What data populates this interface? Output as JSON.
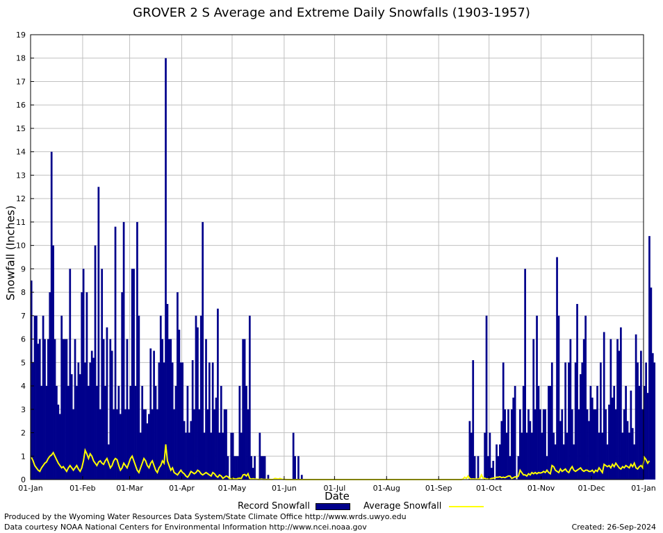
{
  "chart_data": {
    "type": "bar",
    "title": "GROVER 2 S Average and Extreme Daily Snowfalls (1903-1957)",
    "xlabel": "Date",
    "ylabel": "Snowfall (Inches)",
    "ylim": [
      0,
      19
    ],
    "xlim_days": [
      1,
      366
    ],
    "grid": true,
    "x_ticks": [
      "01-Jan",
      "01-Feb",
      "01-Mar",
      "01-Apr",
      "01-May",
      "01-Jun",
      "01-Jul",
      "01-Aug",
      "01-Sep",
      "01-Oct",
      "01-Nov",
      "01-Dec",
      "01-Jan"
    ],
    "y_ticks": [
      0,
      1,
      2,
      3,
      4,
      5,
      6,
      7,
      8,
      9,
      10,
      11,
      12,
      13,
      14,
      15,
      16,
      17,
      18,
      19
    ],
    "series": [
      {
        "name": "Record Snowfall",
        "type": "bar",
        "color": "#00008b",
        "values": [
          8.5,
          5,
          7,
          7,
          5.8,
          6,
          4,
          7,
          6,
          4,
          6,
          8,
          14,
          10,
          6,
          4,
          3.2,
          2.8,
          7,
          6,
          6,
          6,
          4,
          9,
          4.5,
          3,
          6,
          4,
          5,
          4.5,
          8,
          9,
          5,
          8,
          4,
          5,
          5.5,
          5.2,
          10,
          4,
          12.5,
          3,
          9,
          6,
          4,
          6.5,
          1.5,
          6,
          5.5,
          3,
          10.8,
          3,
          4,
          2.8,
          8,
          11,
          3,
          6,
          3,
          4,
          9,
          9,
          4,
          11,
          7,
          2,
          4,
          3,
          3,
          2.4,
          2.8,
          5.6,
          3,
          5.5,
          4,
          3,
          5,
          7,
          6,
          5,
          18,
          7.5,
          6,
          6,
          5,
          3,
          4,
          8,
          6.4,
          5,
          5,
          2.5,
          2,
          4,
          2,
          2.5,
          5.1,
          3,
          7,
          6.5,
          3,
          7,
          11,
          2,
          6,
          3,
          5,
          2,
          5,
          3,
          3.5,
          7.3,
          2,
          4,
          2,
          3,
          3,
          1,
          0,
          2,
          2,
          1,
          1,
          1,
          4,
          2,
          6,
          6,
          4,
          3,
          7,
          1,
          0.5,
          1,
          0,
          0,
          2,
          1,
          1,
          1,
          0,
          0.2,
          0,
          0,
          0,
          0,
          0,
          0,
          0,
          0,
          0,
          0,
          0,
          0,
          0,
          0,
          2,
          1,
          0,
          1,
          0,
          0.2,
          0,
          0,
          0,
          0,
          0,
          0,
          0,
          0,
          0,
          0,
          0,
          0,
          0,
          0,
          0,
          0,
          0,
          0,
          0,
          0,
          0,
          0,
          0,
          0,
          0,
          0,
          0,
          0,
          0,
          0,
          0,
          0,
          0,
          0,
          0,
          0,
          0,
          0,
          0,
          0,
          0,
          0,
          0,
          0,
          0,
          0,
          0,
          0,
          0,
          0,
          0,
          0,
          0,
          0,
          0,
          0,
          0,
          0,
          0,
          0,
          0,
          0,
          0,
          0,
          0,
          0,
          0,
          0,
          0,
          0,
          0,
          0,
          0,
          0,
          0,
          0,
          0,
          0,
          0,
          0,
          0,
          0,
          0,
          0,
          0,
          0,
          0,
          0,
          0,
          0,
          0,
          0,
          0,
          0,
          0,
          0,
          0,
          0,
          0,
          2.5,
          2,
          5.1,
          1,
          0,
          1,
          0,
          0,
          0,
          2,
          7,
          1,
          2,
          0.5,
          0.8,
          0,
          1.5,
          1,
          1.5,
          2.5,
          5,
          3,
          2,
          3,
          1,
          3,
          3.5,
          4,
          0,
          1,
          3,
          2,
          4,
          9,
          2,
          3,
          2.5,
          2,
          6,
          3,
          7,
          4,
          3,
          2,
          3,
          3,
          1,
          4,
          4,
          5,
          2,
          1.5,
          9.5,
          7,
          2.5,
          3,
          1.5,
          5,
          2,
          5,
          6,
          3,
          1.5,
          5,
          7.5,
          3,
          4.5,
          5,
          6,
          7,
          3,
          2.5,
          4,
          3.5,
          3,
          3,
          4,
          2,
          5,
          2,
          6.3,
          3,
          1.5,
          3.2,
          6,
          3.5,
          4,
          3,
          6,
          5.5,
          6.5,
          2,
          3,
          4,
          2.5,
          2,
          3.8,
          2.2,
          1.5,
          6.2,
          5,
          4,
          5.5,
          3,
          4,
          5,
          3.7,
          10.4,
          8.2,
          5.4,
          5
        ]
      },
      {
        "name": "Average Snowfall",
        "type": "line",
        "color": "#ffff00",
        "values": [
          0.95,
          0.8,
          0.6,
          0.5,
          0.4,
          0.35,
          0.5,
          0.6,
          0.7,
          0.75,
          0.9,
          1.0,
          1.05,
          1.15,
          1.0,
          0.85,
          0.7,
          0.6,
          0.5,
          0.55,
          0.45,
          0.35,
          0.5,
          0.6,
          0.5,
          0.4,
          0.5,
          0.6,
          0.45,
          0.35,
          0.5,
          0.8,
          1.25,
          1.1,
          0.9,
          1.1,
          1.0,
          0.8,
          0.7,
          0.6,
          0.75,
          0.8,
          0.7,
          0.65,
          0.8,
          0.9,
          0.7,
          0.5,
          0.6,
          0.8,
          0.9,
          0.85,
          0.6,
          0.4,
          0.5,
          0.7,
          0.6,
          0.5,
          0.7,
          0.9,
          1.0,
          0.8,
          0.6,
          0.4,
          0.3,
          0.5,
          0.7,
          0.9,
          0.8,
          0.6,
          0.5,
          0.7,
          0.8,
          0.6,
          0.4,
          0.3,
          0.5,
          0.6,
          0.8,
          0.7,
          1.5,
          0.8,
          0.6,
          0.4,
          0.5,
          0.3,
          0.25,
          0.2,
          0.3,
          0.4,
          0.3,
          0.25,
          0.15,
          0.1,
          0.2,
          0.35,
          0.3,
          0.25,
          0.3,
          0.4,
          0.35,
          0.25,
          0.2,
          0.25,
          0.3,
          0.25,
          0.2,
          0.15,
          0.3,
          0.25,
          0.15,
          0.1,
          0.2,
          0.15,
          0.05,
          0.1,
          0.15,
          0.12,
          0.05,
          0.03,
          0.05,
          0.03,
          0.02,
          0.05,
          0.06,
          0.05,
          0.2,
          0.22,
          0.15,
          0.25,
          0.05,
          0.02,
          0.04,
          0.02,
          0.02,
          0.01,
          0.01,
          0.02,
          0.01,
          0.01,
          0.01,
          0.01,
          0.01,
          0,
          0.01,
          0.05,
          0.04,
          0.02,
          0.05,
          0.02,
          0.01,
          0.01,
          0,
          0,
          0,
          0,
          0,
          0,
          0,
          0,
          0,
          0,
          0,
          0,
          0,
          0,
          0,
          0,
          0,
          0,
          0,
          0,
          0,
          0,
          0,
          0,
          0,
          0,
          0,
          0,
          0,
          0,
          0,
          0,
          0,
          0,
          0,
          0,
          0,
          0,
          0,
          0,
          0,
          0,
          0,
          0,
          0,
          0,
          0,
          0,
          0,
          0,
          0,
          0,
          0,
          0,
          0,
          0,
          0,
          0,
          0,
          0,
          0,
          0,
          0,
          0,
          0,
          0,
          0,
          0,
          0,
          0,
          0,
          0,
          0,
          0,
          0,
          0,
          0,
          0,
          0,
          0,
          0,
          0,
          0,
          0,
          0,
          0,
          0,
          0,
          0,
          0,
          0,
          0,
          0,
          0,
          0,
          0,
          0,
          0,
          0,
          0,
          0,
          0,
          0,
          0,
          0,
          0.02,
          0.1,
          0.05,
          0.15,
          0.05,
          0.02,
          0.03,
          0.02,
          0.02,
          0.02,
          0.05,
          0.2,
          0.05,
          0.06,
          0.02,
          0.03,
          0.02,
          0.05,
          0.06,
          0.08,
          0.1,
          0.1,
          0.12,
          0.08,
          0.1,
          0.08,
          0.12,
          0.15,
          0.15,
          0.05,
          0.08,
          0.12,
          0.1,
          0.15,
          0.4,
          0.3,
          0.2,
          0.2,
          0.15,
          0.25,
          0.2,
          0.3,
          0.25,
          0.3,
          0.25,
          0.3,
          0.28,
          0.3,
          0.35,
          0.3,
          0.4,
          0.3,
          0.25,
          0.6,
          0.55,
          0.4,
          0.35,
          0.3,
          0.45,
          0.35,
          0.4,
          0.45,
          0.35,
          0.3,
          0.45,
          0.55,
          0.4,
          0.35,
          0.4,
          0.45,
          0.5,
          0.4,
          0.35,
          0.4,
          0.4,
          0.35,
          0.35,
          0.4,
          0.3,
          0.4,
          0.35,
          0.5,
          0.4,
          0.3,
          0.65,
          0.6,
          0.55,
          0.6,
          0.5,
          0.65,
          0.55,
          0.7,
          0.6,
          0.5,
          0.45,
          0.55,
          0.5,
          0.6,
          0.55,
          0.5,
          0.65,
          0.55,
          0.7,
          0.5,
          0.45,
          0.55,
          0.6,
          0.5,
          0.95,
          0.85,
          0.7,
          0.8
        ]
      }
    ],
    "legend_position": "bottom-center"
  },
  "footer": {
    "produced_by": "Produced by the Wyoming Water Resources Data System/State Climate Office http://www.wrds.uwyo.edu",
    "courtesy": "Data courtesy NOAA National Centers for Environmental Information http://www.ncei.noaa.gov",
    "created": "Created:  26-Sep-2024"
  }
}
